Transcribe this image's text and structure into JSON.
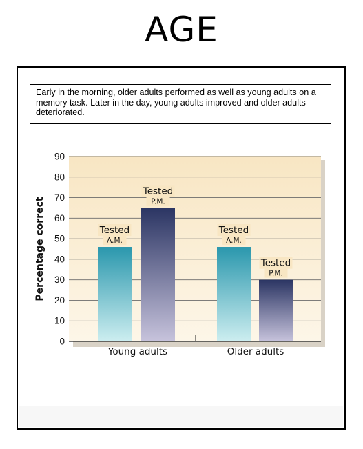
{
  "slide": {
    "title": "AGE"
  },
  "figure": {
    "caption": "Early in the morning, older adults performed as well as young adults on a memory task. Later in the day, young adults improved and older adults deteriorated."
  },
  "chart_data": {
    "type": "bar",
    "title": "",
    "xlabel": "",
    "ylabel": "Percentage correct",
    "ylim": [
      0,
      90
    ],
    "yticks": [
      0,
      10,
      20,
      30,
      40,
      50,
      60,
      70,
      80,
      90
    ],
    "grid": true,
    "categories": [
      "Young adults",
      "Older adults"
    ],
    "series": [
      {
        "name": "Tested A.M.",
        "label_main": "Tested",
        "label_sub": "A.M.",
        "values": [
          46,
          46
        ],
        "color_top": "#2a97ad",
        "color_bottom": "#cdeef0"
      },
      {
        "name": "Tested P.M.",
        "label_main": "Tested",
        "label_sub": "P.M.",
        "values": [
          65,
          30
        ],
        "color_top": "#2b3563",
        "color_bottom": "#c7c3dc"
      }
    ],
    "colors": {
      "plot_background": "#f8e6c3",
      "gridline": "#6b6b6b"
    }
  }
}
